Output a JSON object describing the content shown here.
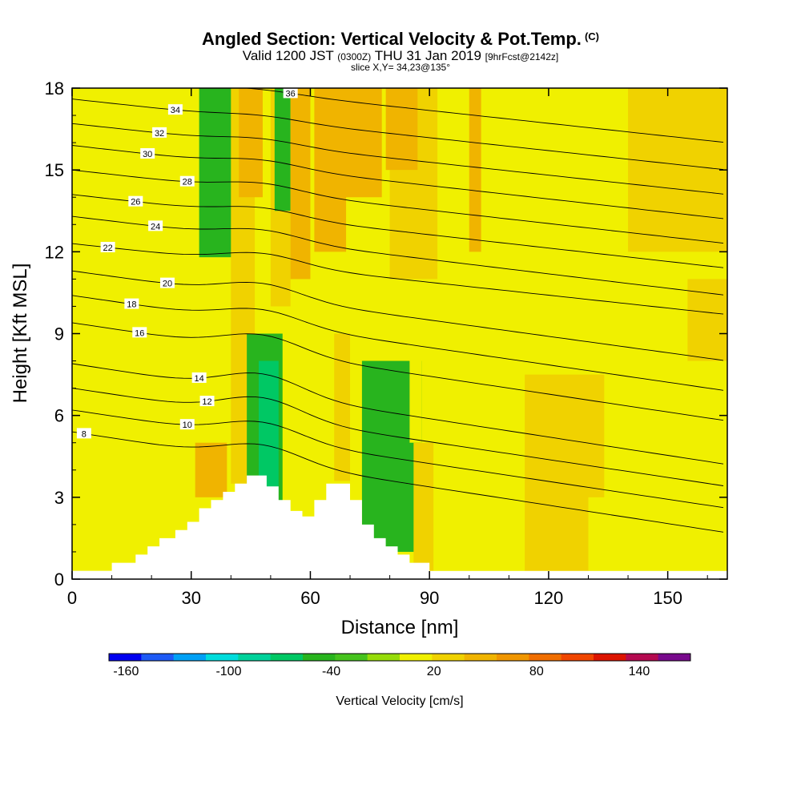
{
  "header": {
    "title": "Angled Section: Vertical Velocity & Pot.Temp.",
    "title_tag": "(C)",
    "valid_prefix": "Valid 1200 JST",
    "valid_zulu": "(0300Z)",
    "valid_date": "THU 31 Jan 2019",
    "forecast": "[9hrFcst@2142z]",
    "slice": "slice X,Y= 34,23@135°"
  },
  "chart_data": {
    "type": "heatmap",
    "xlabel": "Distance [nm]",
    "ylabel": "Height [Kft MSL]",
    "xlim": [
      0,
      165
    ],
    "ylim": [
      0,
      18
    ],
    "x_ticks": [
      "0",
      "30",
      "60",
      "90",
      "120",
      "150"
    ],
    "y_ticks": [
      "0",
      "3",
      "6",
      "9",
      "12",
      "15",
      "18"
    ],
    "colorbar": {
      "label": "Vertical Velocity [cm/s]",
      "tick_labels": [
        "-160",
        "-100",
        "-40",
        "20",
        "80",
        "140"
      ],
      "tick_values": [
        -160,
        -100,
        -40,
        20,
        80,
        140
      ],
      "range": [
        -170,
        170
      ],
      "bins": 18,
      "colors": [
        "#0000f0",
        "#1e5af5",
        "#00a0f5",
        "#00dcdc",
        "#00d29b",
        "#00c864",
        "#28b41e",
        "#46c31e",
        "#96dc0a",
        "#f0f000",
        "#f0d200",
        "#f0b400",
        "#f09600",
        "#f06e00",
        "#f04600",
        "#dc1400",
        "#b40a50",
        "#780a8c"
      ]
    },
    "terrain_profile": {
      "x": [
        0,
        10,
        10,
        16,
        16,
        19,
        19,
        22,
        22,
        26,
        26,
        29,
        29,
        32,
        32,
        35,
        35,
        38,
        38,
        41,
        41,
        44,
        44,
        49,
        49,
        52,
        52,
        55,
        55,
        58,
        58,
        61,
        61,
        64,
        64,
        70,
        70,
        73,
        73,
        76,
        76,
        79,
        79,
        82,
        82,
        85,
        85,
        90,
        90
      ],
      "height": [
        0.3,
        0.3,
        0.6,
        0.6,
        0.9,
        0.9,
        1.2,
        1.2,
        1.5,
        1.5,
        1.8,
        1.8,
        2.1,
        2.1,
        2.6,
        2.6,
        2.9,
        2.9,
        3.2,
        3.2,
        3.5,
        3.5,
        3.8,
        3.8,
        3.4,
        3.4,
        2.9,
        2.9,
        2.5,
        2.5,
        2.3,
        2.3,
        2.9,
        2.9,
        3.5,
        3.5,
        2.9,
        2.9,
        2.0,
        2.0,
        1.5,
        1.5,
        1.2,
        1.2,
        0.9,
        0.9,
        0.6,
        0.6,
        0.3
      ]
    },
    "velocity_bands": [
      {
        "x": 3,
        "w": 22,
        "bottom": 3.0,
        "top": 18,
        "value": 0
      },
      {
        "x": 18,
        "w": 16,
        "bottom": 0.9,
        "top": 6.5,
        "value": 10
      },
      {
        "x": 31,
        "w": 8,
        "bottom": 3.0,
        "top": 5.0,
        "value": 40
      },
      {
        "x": 32,
        "w": 10,
        "bottom": 11.8,
        "top": 18,
        "value": -40
      },
      {
        "x": 40,
        "w": 6,
        "bottom": 3.5,
        "top": 18,
        "value": 20
      },
      {
        "x": 42,
        "w": 6,
        "bottom": 14,
        "top": 18,
        "value": 40
      },
      {
        "x": 44,
        "w": 9,
        "bottom": 2.6,
        "top": 9.0,
        "value": -40
      },
      {
        "x": 47,
        "w": 5,
        "bottom": 3.2,
        "top": 8.0,
        "value": -70
      },
      {
        "x": 50,
        "w": 5,
        "bottom": 10.0,
        "top": 18,
        "value": 20
      },
      {
        "x": 51,
        "w": 4,
        "bottom": 13.5,
        "top": 18,
        "value": -40
      },
      {
        "x": 55,
        "w": 5,
        "bottom": 11.0,
        "top": 18,
        "value": 40
      },
      {
        "x": 61,
        "w": 8,
        "bottom": 12.0,
        "top": 18,
        "value": 40
      },
      {
        "x": 61,
        "w": 5,
        "bottom": 3.3,
        "top": 7.5,
        "value": 0
      },
      {
        "x": 66,
        "w": 5,
        "bottom": 3.6,
        "top": 9.0,
        "value": 20
      },
      {
        "x": 70,
        "w": 5,
        "bottom": 3.6,
        "top": 11.0,
        "value": 0
      },
      {
        "x": 68,
        "w": 10,
        "bottom": 14.0,
        "top": 18,
        "value": 40
      },
      {
        "x": 73,
        "w": 15,
        "bottom": 1.0,
        "top": 8.0,
        "value": -40
      },
      {
        "x": 73,
        "w": 14,
        "bottom": 9.0,
        "top": 13.0,
        "value": 0
      },
      {
        "x": 85,
        "w": 3,
        "bottom": 5.0,
        "top": 12.0,
        "value": 0
      },
      {
        "x": 80,
        "w": 12,
        "bottom": 11.0,
        "top": 18,
        "value": 20
      },
      {
        "x": 79,
        "w": 8,
        "bottom": 15.0,
        "top": 18,
        "value": 40
      },
      {
        "x": 86,
        "w": 5,
        "bottom": 0.3,
        "top": 5.0,
        "value": 20
      },
      {
        "x": 96,
        "w": 3,
        "bottom": 0.3,
        "top": 10.0,
        "value": 0
      },
      {
        "x": 99,
        "w": 10,
        "bottom": 10.0,
        "top": 18,
        "value": 0
      },
      {
        "x": 100,
        "w": 3,
        "bottom": 12.0,
        "top": 18,
        "value": 40
      },
      {
        "x": 108,
        "w": 30,
        "bottom": 8.0,
        "top": 18,
        "value": 0
      },
      {
        "x": 114,
        "w": 20,
        "bottom": 0.3,
        "top": 7.5,
        "value": 20
      },
      {
        "x": 130,
        "w": 35,
        "bottom": 0.3,
        "top": 3.0,
        "value": 0
      },
      {
        "x": 140,
        "w": 25,
        "bottom": 12.0,
        "top": 18,
        "value": 20
      },
      {
        "x": 155,
        "w": 10,
        "bottom": 8.0,
        "top": 11.0,
        "value": 20
      }
    ],
    "isentropes": [
      {
        "label": "8",
        "y_left": 5.4,
        "y_right": 1.7,
        "bump": 0.6,
        "label_x": 3
      },
      {
        "label": "10",
        "y_left": 6.2,
        "y_right": 2.6,
        "bump": 0.6,
        "label_x": 29
      },
      {
        "label": "12",
        "y_left": 7.0,
        "y_right": 3.4,
        "bump": 0.7,
        "label_x": 34
      },
      {
        "label": "14",
        "y_left": 7.9,
        "y_right": 4.2,
        "bump": 0.7,
        "label_x": 32
      },
      {
        "label": "16",
        "y_left": 9.4,
        "y_right": 5.8,
        "bump": 0.6,
        "label_x": 17
      },
      {
        "label": "18",
        "y_left": 10.4,
        "y_right": 6.9,
        "bump": 0.5,
        "label_x": 15
      },
      {
        "label": "20",
        "y_left": 11.3,
        "y_right": 8.0,
        "bump": 0.5,
        "label_x": 24
      },
      {
        "label": "22",
        "y_left": 12.3,
        "y_right": 9.7,
        "bump": 0.4,
        "label_x": 9
      },
      {
        "label": "24",
        "y_left": 13.3,
        "y_right": 10.4,
        "bump": 0.35,
        "label_x": 21
      },
      {
        "label": "26",
        "y_left": 14.1,
        "y_right": 11.4,
        "bump": 0.3,
        "label_x": 16
      },
      {
        "label": "28",
        "y_left": 15.0,
        "y_right": 12.3,
        "bump": 0.3,
        "label_x": 29
      },
      {
        "label": "30",
        "y_left": 15.9,
        "y_right": 13.2,
        "bump": 0.25,
        "label_x": 19
      },
      {
        "label": "32",
        "y_left": 16.7,
        "y_right": 14.1,
        "bump": 0.2,
        "label_x": 22
      },
      {
        "label": "34",
        "y_left": 17.6,
        "y_right": 15.0,
        "bump": 0.15,
        "label_x": 26
      },
      {
        "label": "36",
        "y_left": 18.6,
        "y_right": 16.0,
        "bump": 0.1,
        "label_x": 55
      }
    ]
  }
}
